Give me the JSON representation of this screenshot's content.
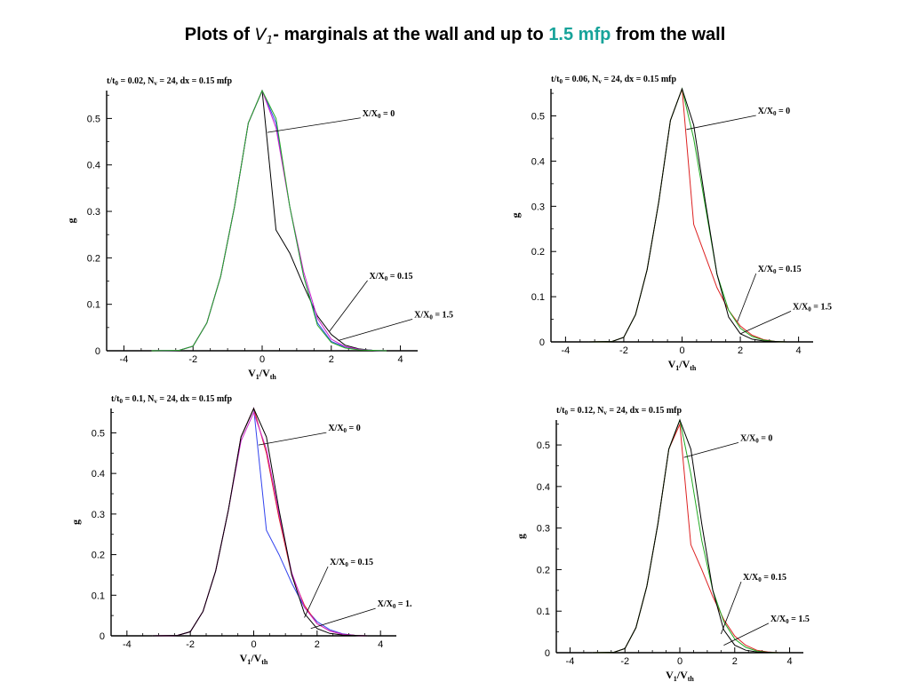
{
  "title": {
    "prefix": "Plots of ",
    "symbol": "V",
    "symbol_sub": "1",
    "middle": "- marginals at the wall and up to ",
    "accent": "1.5 mfp",
    "suffix": " from the wall",
    "accent_color": "#17a39a"
  },
  "colors": {
    "black": "#000000",
    "green": "#22aa22",
    "red": "#dd2222",
    "blue": "#3344ee",
    "magenta": "#cc22cc"
  },
  "chart_data": [
    {
      "type": "line",
      "title": {
        "t": "t/t",
        "t_sub": "0",
        "rest1": " = 0.02, N",
        "n_sub": "v",
        "rest2": " = 24, dx = 0.15 mfp"
      },
      "xlabel": {
        "main": "V",
        "sub1": "1",
        "mid": "/V",
        "sub2": "th"
      },
      "ylabel": "g",
      "xlim": [
        -4.5,
        4.5
      ],
      "ylim": [
        0,
        0.56
      ],
      "xticks": [
        -4,
        -2,
        0,
        2,
        4
      ],
      "yticks": [
        0,
        0.1,
        0.2,
        0.3,
        0.4,
        0.5
      ],
      "series": [
        {
          "color_key": "black",
          "x": [
            -3.2,
            -2.4,
            -2.0,
            -1.6,
            -1.2,
            -0.8,
            -0.4,
            0.0,
            0.4,
            0.8,
            1.2,
            1.6,
            2.0,
            2.4,
            2.8,
            3.2,
            3.6
          ],
          "y": [
            0,
            0.001,
            0.01,
            0.06,
            0.16,
            0.31,
            0.49,
            0.56,
            0.26,
            0.21,
            0.14,
            0.075,
            0.035,
            0.012,
            0.004,
            0.001,
            0
          ]
        },
        {
          "color_key": "blue",
          "x": [
            -3.2,
            -2.4,
            -2.0,
            -1.6,
            -1.2,
            -0.8,
            -0.4,
            0.0,
            0.4,
            0.8,
            1.2,
            1.6,
            2.0,
            2.4,
            2.8,
            3.2,
            3.6
          ],
          "y": [
            0,
            0.001,
            0.01,
            0.06,
            0.16,
            0.31,
            0.49,
            0.56,
            0.49,
            0.31,
            0.16,
            0.06,
            0.02,
            0.008,
            0.003,
            0.001,
            0
          ]
        },
        {
          "color_key": "magenta",
          "x": [
            -3.2,
            -2.4,
            -2.0,
            -1.6,
            -1.2,
            -0.8,
            -0.4,
            0.0,
            0.4,
            0.8,
            1.2,
            1.6,
            2.0,
            2.4,
            2.8,
            3.2,
            3.6
          ],
          "y": [
            0,
            0.001,
            0.01,
            0.06,
            0.16,
            0.31,
            0.49,
            0.56,
            0.48,
            0.31,
            0.17,
            0.07,
            0.025,
            0.009,
            0.003,
            0.001,
            0
          ]
        },
        {
          "color_key": "green",
          "x": [
            -3.2,
            -2.4,
            -2.0,
            -1.6,
            -1.2,
            -0.8,
            -0.4,
            0.0,
            0.4,
            0.8,
            1.2,
            1.6,
            2.0,
            2.4,
            2.8,
            3.2,
            3.6
          ],
          "y": [
            0,
            0.001,
            0.01,
            0.06,
            0.16,
            0.31,
            0.49,
            0.56,
            0.5,
            0.31,
            0.16,
            0.055,
            0.018,
            0.006,
            0.002,
            0.001,
            0
          ]
        }
      ],
      "annotations": [
        {
          "text": "X/X",
          "sub": "0",
          "tail": " = 0",
          "label": [
            2.9,
            0.505
          ],
          "point": [
            0.15,
            0.47
          ]
        },
        {
          "text": "X/X",
          "sub": "0",
          "tail": " = 0.15",
          "label": [
            3.1,
            0.155
          ],
          "point": [
            1.95,
            0.042
          ]
        },
        {
          "text": "X/X",
          "sub": "0",
          "tail": " = 1.5",
          "label": [
            4.4,
            0.072
          ],
          "point": [
            2.2,
            0.022
          ]
        }
      ]
    },
    {
      "type": "line",
      "title": {
        "t": "t/t",
        "t_sub": "0",
        "rest1": " = 0.06, N",
        "n_sub": "v",
        "rest2": " = 24, dx = 0.15 mfp"
      },
      "xlabel": {
        "main": "V",
        "sub1": "1",
        "mid": "/V",
        "sub2": "th"
      },
      "ylabel": "g",
      "xlim": [
        -4.5,
        4.5
      ],
      "ylim": [
        0,
        0.56
      ],
      "xticks": [
        -4,
        -2,
        0,
        2,
        4
      ],
      "yticks": [
        0,
        0.1,
        0.2,
        0.3,
        0.4,
        0.5
      ],
      "series": [
        {
          "color_key": "red",
          "x": [
            -3.2,
            -2.4,
            -2.0,
            -1.6,
            -1.2,
            -0.8,
            -0.4,
            0.0,
            0.4,
            0.8,
            1.2,
            1.6,
            2.0,
            2.4,
            2.8,
            3.2,
            3.6
          ],
          "y": [
            0,
            0.001,
            0.01,
            0.06,
            0.16,
            0.31,
            0.49,
            0.56,
            0.26,
            0.19,
            0.12,
            0.07,
            0.035,
            0.015,
            0.005,
            0.001,
            0
          ]
        },
        {
          "color_key": "green",
          "x": [
            -3.2,
            -2.4,
            -2.0,
            -1.6,
            -1.2,
            -0.8,
            -0.4,
            0.0,
            0.4,
            0.8,
            1.2,
            1.6,
            2.0,
            2.4,
            2.8,
            3.2,
            3.6
          ],
          "y": [
            0,
            0.001,
            0.01,
            0.06,
            0.16,
            0.31,
            0.49,
            0.56,
            0.45,
            0.3,
            0.15,
            0.07,
            0.03,
            0.012,
            0.004,
            0.001,
            0
          ]
        },
        {
          "color_key": "black",
          "x": [
            -3.2,
            -2.4,
            -2.0,
            -1.6,
            -1.2,
            -0.8,
            -0.4,
            0.0,
            0.4,
            0.8,
            1.2,
            1.6,
            2.0,
            2.4,
            2.8,
            3.2,
            3.6
          ],
          "y": [
            0,
            0.001,
            0.01,
            0.06,
            0.16,
            0.31,
            0.49,
            0.56,
            0.48,
            0.31,
            0.15,
            0.055,
            0.018,
            0.006,
            0.002,
            0.001,
            0
          ]
        }
      ],
      "annotations": [
        {
          "text": "X/X",
          "sub": "0",
          "tail": " = 0",
          "label": [
            2.6,
            0.505
          ],
          "point": [
            0.15,
            0.47
          ]
        },
        {
          "text": "X/X",
          "sub": "0",
          "tail": " = 0.15",
          "label": [
            2.6,
            0.155
          ],
          "point": [
            1.9,
            0.045
          ]
        },
        {
          "text": "X/X",
          "sub": "0",
          "tail": " = 1.5",
          "label": [
            3.8,
            0.072
          ],
          "point": [
            2.0,
            0.018
          ]
        }
      ]
    },
    {
      "type": "line",
      "title": {
        "t": "t/t",
        "t_sub": "0",
        "rest1": " = 0.1, N",
        "n_sub": "v",
        "rest2": " = 24, dx = 0.15 mfp"
      },
      "xlabel": {
        "main": "V",
        "sub1": "1",
        "mid": "/V",
        "sub2": "th"
      },
      "ylabel": "g",
      "xlim": [
        -4.5,
        4.5
      ],
      "ylim": [
        0,
        0.56
      ],
      "xticks": [
        -4,
        -2,
        0,
        2,
        4
      ],
      "yticks": [
        0,
        0.1,
        0.2,
        0.3,
        0.4,
        0.5
      ],
      "series": [
        {
          "color_key": "blue",
          "x": [
            -3.2,
            -2.4,
            -2.0,
            -1.6,
            -1.2,
            -0.8,
            -0.4,
            0.0,
            0.4,
            0.8,
            1.2,
            1.6,
            2.0,
            2.4,
            2.8,
            3.2,
            3.6
          ],
          "y": [
            0,
            0.001,
            0.01,
            0.06,
            0.16,
            0.31,
            0.49,
            0.56,
            0.26,
            0.2,
            0.13,
            0.07,
            0.035,
            0.015,
            0.005,
            0.001,
            0
          ]
        },
        {
          "color_key": "red",
          "x": [
            -3.2,
            -2.4,
            -2.0,
            -1.6,
            -1.2,
            -0.8,
            -0.4,
            0.0,
            0.4,
            0.8,
            1.2,
            1.6,
            2.0,
            2.4,
            2.8,
            3.2,
            3.6
          ],
          "y": [
            0,
            0.001,
            0.01,
            0.06,
            0.16,
            0.31,
            0.49,
            0.56,
            0.45,
            0.29,
            0.15,
            0.075,
            0.03,
            0.012,
            0.004,
            0.001,
            0
          ]
        },
        {
          "color_key": "magenta",
          "x": [
            -3.2,
            -2.4,
            -2.0,
            -1.6,
            -1.2,
            -0.8,
            -0.4,
            0.0,
            0.4,
            0.8,
            1.2,
            1.6,
            2.0,
            2.4,
            2.8,
            3.2,
            3.6
          ],
          "y": [
            0,
            0.001,
            0.01,
            0.06,
            0.16,
            0.31,
            0.48,
            0.55,
            0.46,
            0.3,
            0.155,
            0.07,
            0.03,
            0.012,
            0.004,
            0.001,
            0
          ]
        },
        {
          "color_key": "black",
          "x": [
            -3.2,
            -2.4,
            -2.0,
            -1.6,
            -1.2,
            -0.8,
            -0.4,
            0.0,
            0.4,
            0.8,
            1.2,
            1.6,
            2.0,
            2.4,
            2.8,
            3.2,
            3.6
          ],
          "y": [
            0,
            0.001,
            0.01,
            0.06,
            0.16,
            0.31,
            0.49,
            0.56,
            0.49,
            0.31,
            0.15,
            0.055,
            0.018,
            0.006,
            0.002,
            0.001,
            0
          ]
        }
      ],
      "annotations": [
        {
          "text": "X/X",
          "sub": "0",
          "tail": " = 0",
          "label": [
            2.35,
            0.505
          ],
          "point": [
            0.15,
            0.47
          ]
        },
        {
          "text": "X/X",
          "sub": "0",
          "tail": " = 0.15",
          "label": [
            2.4,
            0.175
          ],
          "point": [
            1.6,
            0.045
          ]
        },
        {
          "text": "X/X",
          "sub": "0",
          "tail": " = 1.",
          "label": [
            3.9,
            0.072
          ],
          "point": [
            1.8,
            0.018
          ]
        }
      ]
    },
    {
      "type": "line",
      "title": {
        "t": "t/t",
        "t_sub": "0",
        "rest1": " = 0.12, N",
        "n_sub": "v",
        "rest2": " = 24, dx = 0.15 mfp"
      },
      "xlabel": {
        "main": "V",
        "sub1": "1",
        "mid": "/V",
        "sub2": "th"
      },
      "ylabel": "g",
      "xlim": [
        -4.5,
        4.5
      ],
      "ylim": [
        0,
        0.56
      ],
      "xticks": [
        -4,
        -2,
        0,
        2,
        4
      ],
      "yticks": [
        0,
        0.1,
        0.2,
        0.3,
        0.4,
        0.5
      ],
      "series": [
        {
          "color_key": "red",
          "x": [
            -3.2,
            -2.4,
            -2.0,
            -1.6,
            -1.2,
            -0.8,
            -0.4,
            0.0,
            0.4,
            0.8,
            1.2,
            1.6,
            2.0,
            2.4,
            2.8,
            3.2,
            3.6
          ],
          "y": [
            0,
            0.001,
            0.01,
            0.06,
            0.16,
            0.31,
            0.49,
            0.55,
            0.26,
            0.2,
            0.135,
            0.08,
            0.04,
            0.018,
            0.006,
            0.002,
            0
          ]
        },
        {
          "color_key": "green",
          "x": [
            -3.2,
            -2.4,
            -2.0,
            -1.6,
            -1.2,
            -0.8,
            -0.4,
            0.0,
            0.4,
            0.8,
            1.2,
            1.6,
            2.0,
            2.4,
            2.8,
            3.2,
            3.6
          ],
          "y": [
            0,
            0.001,
            0.01,
            0.06,
            0.16,
            0.31,
            0.49,
            0.56,
            0.43,
            0.27,
            0.15,
            0.075,
            0.033,
            0.013,
            0.004,
            0.001,
            0
          ]
        },
        {
          "color_key": "black",
          "x": [
            -3.2,
            -2.4,
            -2.0,
            -1.6,
            -1.2,
            -0.8,
            -0.4,
            0.0,
            0.4,
            0.8,
            1.2,
            1.6,
            2.0,
            2.4,
            2.8,
            3.2,
            3.6
          ],
          "y": [
            0,
            0.001,
            0.01,
            0.06,
            0.16,
            0.31,
            0.49,
            0.56,
            0.49,
            0.31,
            0.15,
            0.055,
            0.018,
            0.006,
            0.002,
            0.001,
            0
          ]
        }
      ],
      "annotations": [
        {
          "text": "X/X",
          "sub": "0",
          "tail": " = 0",
          "label": [
            2.2,
            0.51
          ],
          "point": [
            0.15,
            0.47
          ]
        },
        {
          "text": "X/X",
          "sub": "0",
          "tail": " = 0.15",
          "label": [
            2.3,
            0.175
          ],
          "point": [
            1.5,
            0.045
          ]
        },
        {
          "text": "X/X",
          "sub": "0",
          "tail": " = 1.5",
          "label": [
            3.3,
            0.075
          ],
          "point": [
            1.6,
            0.018
          ]
        }
      ]
    }
  ]
}
